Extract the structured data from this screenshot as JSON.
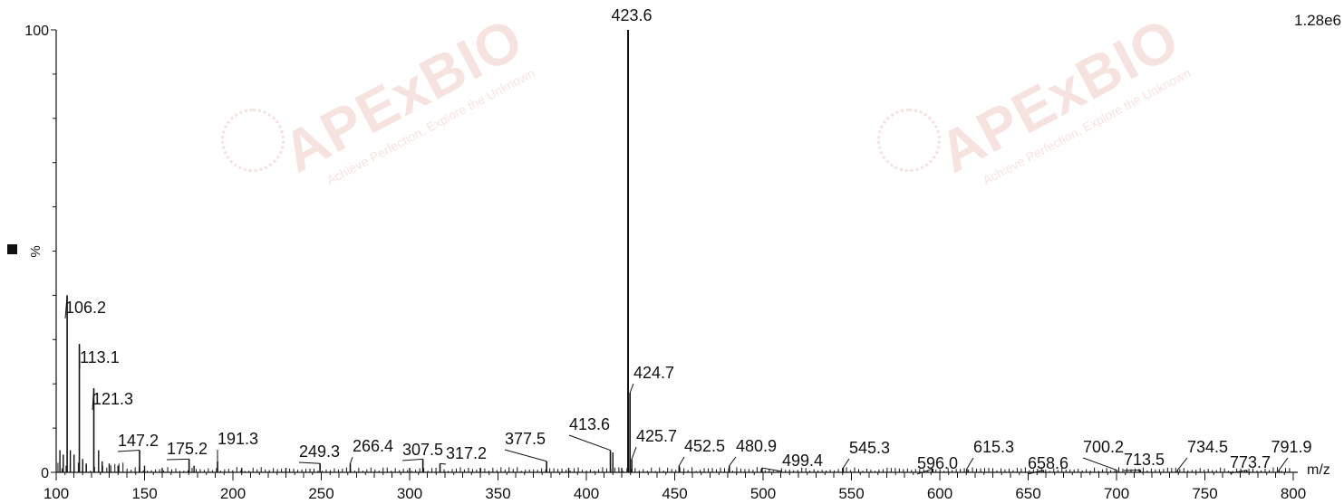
{
  "chart_data": {
    "type": "bar",
    "x_axis": {
      "label": "m/z",
      "ticks": [
        "100",
        "150",
        "200",
        "250",
        "300",
        "350",
        "400",
        "450",
        "500",
        "550",
        "600",
        "650",
        "700",
        "750",
        "800"
      ],
      "xlim": [
        100,
        810
      ]
    },
    "y_axis": {
      "label": "%",
      "ticks": [
        "0",
        "100"
      ],
      "ylim": [
        0,
        100
      ]
    },
    "intensity_label": "1.28e6",
    "peaks": [
      {
        "mz": 106.2,
        "rel": 40,
        "label": "106.2"
      },
      {
        "mz": 113.1,
        "rel": 29,
        "label": "113.1"
      },
      {
        "mz": 121.3,
        "rel": 19,
        "label": "121.3"
      },
      {
        "mz": 147.2,
        "rel": 5,
        "label": "147.2"
      },
      {
        "mz": 175.2,
        "rel": 3,
        "label": "175.2"
      },
      {
        "mz": 191.3,
        "rel": 2.5,
        "label": "191.3"
      },
      {
        "mz": 249.3,
        "rel": 2,
        "label": "249.3"
      },
      {
        "mz": 266.4,
        "rel": 2,
        "label": "266.4"
      },
      {
        "mz": 307.5,
        "rel": 3,
        "label": "307.5"
      },
      {
        "mz": 317.2,
        "rel": 2,
        "label": "317.2"
      },
      {
        "mz": 377.5,
        "rel": 2.5,
        "label": "377.5"
      },
      {
        "mz": 413.6,
        "rel": 5,
        "label": "413.6"
      },
      {
        "mz": 423.6,
        "rel": 100,
        "label": "423.6"
      },
      {
        "mz": 424.7,
        "rel": 18,
        "label": "424.7"
      },
      {
        "mz": 425.7,
        "rel": 3,
        "label": "425.7"
      },
      {
        "mz": 452.5,
        "rel": 1.5,
        "label": "452.5"
      },
      {
        "mz": 480.9,
        "rel": 1.5,
        "label": "480.9"
      },
      {
        "mz": 499.4,
        "rel": 1,
        "label": "499.4"
      },
      {
        "mz": 545.3,
        "rel": 1,
        "label": "545.3"
      },
      {
        "mz": 596.0,
        "rel": 0.8,
        "label": "596.0"
      },
      {
        "mz": 615.3,
        "rel": 0.8,
        "label": "615.3"
      },
      {
        "mz": 658.6,
        "rel": 0.5,
        "label": "658.6"
      },
      {
        "mz": 700.2,
        "rel": 0.5,
        "label": "700.2"
      },
      {
        "mz": 713.5,
        "rel": 0.5,
        "label": "713.5"
      },
      {
        "mz": 734.5,
        "rel": 0.5,
        "label": "734.5"
      },
      {
        "mz": 773.7,
        "rel": 0.5,
        "label": "773.7"
      },
      {
        "mz": 791.9,
        "rel": 0.5,
        "label": "791.9"
      }
    ],
    "minor_peaks": [
      {
        "mz": 102.1,
        "rel": 5
      },
      {
        "mz": 104.0,
        "rel": 4
      },
      {
        "mz": 108.0,
        "rel": 5
      },
      {
        "mz": 110.1,
        "rel": 4
      },
      {
        "mz": 115.0,
        "rel": 3
      },
      {
        "mz": 117.0,
        "rel": 2
      },
      {
        "mz": 124.0,
        "rel": 5
      },
      {
        "mz": 126.0,
        "rel": 2.5
      },
      {
        "mz": 130.0,
        "rel": 2
      },
      {
        "mz": 135.0,
        "rel": 1.5
      },
      {
        "mz": 150.0,
        "rel": 1.5
      },
      {
        "mz": 160.0,
        "rel": 1
      },
      {
        "mz": 178.0,
        "rel": 1.5
      },
      {
        "mz": 205.0,
        "rel": 1
      },
      {
        "mz": 230.0,
        "rel": 1
      },
      {
        "mz": 300.0,
        "rel": 1
      },
      {
        "mz": 340.0,
        "rel": 1
      },
      {
        "mz": 390.0,
        "rel": 1
      },
      {
        "mz": 415.0,
        "rel": 4.5
      },
      {
        "mz": 420.0,
        "rel": 1
      }
    ]
  },
  "watermark": {
    "brand": "APExBIO",
    "tagline": "Achieve Perfection, Explore the Unknown"
  },
  "colors": {
    "axis": "#111111",
    "peak": "#111111",
    "watermark": "#d26a5a"
  }
}
